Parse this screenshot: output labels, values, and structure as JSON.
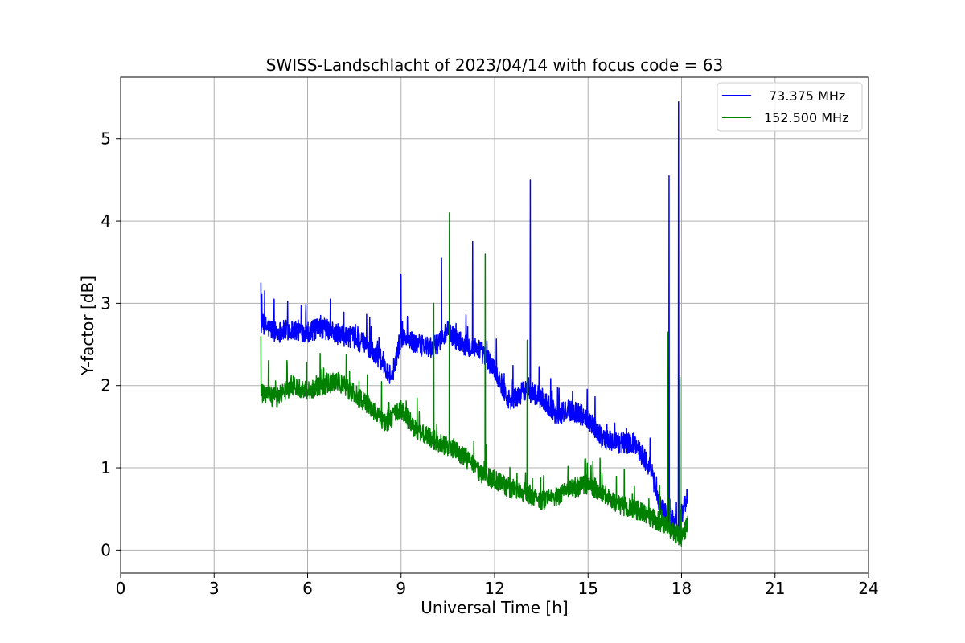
{
  "chart_data": {
    "type": "line",
    "title": "SWISS-Landschlacht of 2023/04/14 with focus code = 63",
    "xlabel": "Universal Time [h]",
    "ylabel": "Y-factor [dB]",
    "xlim": [
      0,
      24
    ],
    "ylim": [
      -0.28,
      5.75
    ],
    "xticks": [
      0,
      3,
      6,
      9,
      12,
      15,
      18,
      21,
      24
    ],
    "yticks": [
      0,
      1,
      2,
      3,
      4,
      5
    ],
    "grid": true,
    "legend_position": "top-right",
    "series": [
      {
        "name": "73.375 MHz",
        "color": "#0000ff",
        "noise": 0.13,
        "points": [
          [
            4.5,
            2.75
          ],
          [
            5.0,
            2.65
          ],
          [
            5.5,
            2.68
          ],
          [
            6.0,
            2.65
          ],
          [
            6.5,
            2.7
          ],
          [
            7.0,
            2.62
          ],
          [
            7.5,
            2.58
          ],
          [
            8.0,
            2.45
          ],
          [
            8.4,
            2.3
          ],
          [
            8.7,
            2.1
          ],
          [
            9.0,
            2.6
          ],
          [
            9.5,
            2.5
          ],
          [
            10.0,
            2.45
          ],
          [
            10.5,
            2.65
          ],
          [
            11.0,
            2.5
          ],
          [
            11.5,
            2.45
          ],
          [
            12.0,
            2.2
          ],
          [
            12.5,
            1.8
          ],
          [
            13.0,
            1.95
          ],
          [
            13.5,
            1.85
          ],
          [
            14.0,
            1.65
          ],
          [
            14.5,
            1.7
          ],
          [
            15.0,
            1.6
          ],
          [
            15.5,
            1.35
          ],
          [
            16.0,
            1.3
          ],
          [
            16.5,
            1.3
          ],
          [
            17.0,
            1.0
          ],
          [
            17.3,
            0.55
          ],
          [
            17.6,
            0.4
          ],
          [
            17.9,
            0.3
          ],
          [
            18.2,
            0.7
          ]
        ],
        "spikes": [
          [
            4.5,
            3.25
          ],
          [
            9.0,
            3.35
          ],
          [
            10.3,
            3.55
          ],
          [
            11.3,
            3.75
          ],
          [
            13.15,
            4.5
          ],
          [
            17.6,
            4.55
          ],
          [
            17.9,
            5.45
          ]
        ]
      },
      {
        "name": "152.500 MHz",
        "color": "#008000",
        "noise": 0.12,
        "points": [
          [
            4.5,
            1.9
          ],
          [
            5.0,
            1.85
          ],
          [
            5.5,
            2.0
          ],
          [
            6.0,
            1.95
          ],
          [
            6.5,
            2.0
          ],
          [
            7.0,
            2.05
          ],
          [
            7.5,
            1.9
          ],
          [
            8.0,
            1.75
          ],
          [
            8.5,
            1.55
          ],
          [
            9.0,
            1.7
          ],
          [
            9.5,
            1.45
          ],
          [
            10.0,
            1.35
          ],
          [
            10.5,
            1.25
          ],
          [
            11.0,
            1.15
          ],
          [
            11.5,
            0.95
          ],
          [
            12.0,
            0.85
          ],
          [
            12.5,
            0.75
          ],
          [
            13.0,
            0.7
          ],
          [
            13.5,
            0.6
          ],
          [
            14.0,
            0.65
          ],
          [
            14.5,
            0.75
          ],
          [
            15.0,
            0.8
          ],
          [
            15.5,
            0.7
          ],
          [
            16.0,
            0.55
          ],
          [
            16.5,
            0.5
          ],
          [
            17.0,
            0.4
          ],
          [
            17.5,
            0.3
          ],
          [
            18.0,
            0.15
          ],
          [
            18.2,
            0.3
          ]
        ],
        "spikes": [
          [
            4.5,
            2.6
          ],
          [
            10.05,
            3.0
          ],
          [
            10.55,
            4.1
          ],
          [
            11.7,
            3.6
          ],
          [
            13.05,
            2.55
          ],
          [
            17.55,
            2.65
          ],
          [
            17.95,
            2.1
          ]
        ]
      }
    ]
  }
}
